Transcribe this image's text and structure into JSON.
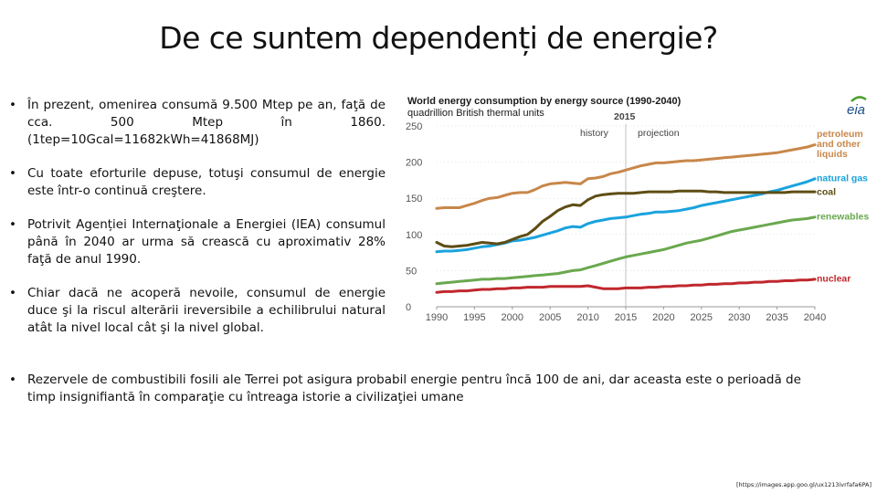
{
  "slide": {
    "title": "De ce suntem dependenți de energie?",
    "bullets": [
      "În prezent, omenirea consumă 9.500 Mtep pe an, faţă de cca. 500 Mtep în 1860. (1tep=10Gcal=11682kWh=41868MJ)",
      "Cu toate eforturile depuse, totuşi consumul de energie este într-o continuă creştere.",
      "Potrivit Agenției Internaţionale a Energiei (IEA) consumul până în 2040 ar urma să crească cu aproximativ 28% faţă de anul 1990.",
      "Chiar dacă ne acoperă nevoile, consumul de energie duce şi la riscul alterării ireversibile a echilibrului natural atât la nivel local cât şi la nivel global.",
      "Rezervele de combustibili fosili ale Terrei pot asigura probabil energie pentru încă 100 de ani, dar aceasta este o perioadă de timp insignifiantă în comparaţie cu întreaga istorie a civilizaţiei umane"
    ],
    "source": "[https://images.app.goo.gl/ux1213ivrfafa6PA]"
  },
  "chart_data": {
    "type": "line",
    "title": "World energy consumption by energy source (1990-2040)",
    "subtitle": "quadrillion British thermal units",
    "logo_text": "eia",
    "divider_year_label": "2015",
    "history_label": "history",
    "projection_label": "projection",
    "divider_year": 2015,
    "xlim": [
      1990,
      2040
    ],
    "ylim": [
      0,
      250
    ],
    "x_ticks": [
      1990,
      1995,
      2000,
      2005,
      2010,
      2015,
      2020,
      2025,
      2030,
      2035,
      2040
    ],
    "y_ticks": [
      0,
      50,
      100,
      150,
      200,
      250
    ],
    "x": [
      1990,
      1991,
      1992,
      1993,
      1994,
      1995,
      1996,
      1997,
      1998,
      1999,
      2000,
      2001,
      2002,
      2003,
      2004,
      2005,
      2006,
      2007,
      2008,
      2009,
      2010,
      2011,
      2012,
      2013,
      2014,
      2015,
      2016,
      2017,
      2018,
      2019,
      2020,
      2021,
      2022,
      2023,
      2024,
      2025,
      2026,
      2027,
      2028,
      2029,
      2030,
      2031,
      2032,
      2033,
      2034,
      2035,
      2036,
      2037,
      2038,
      2039,
      2040
    ],
    "series": [
      {
        "name": "petroleum and other liquids",
        "legend": [
          "petroleum",
          "and other",
          "liquids"
        ],
        "color": "#c8874a",
        "values": [
          136,
          137,
          137,
          137,
          140,
          143,
          147,
          150,
          151,
          154,
          157,
          158,
          158,
          162,
          167,
          170,
          171,
          172,
          171,
          170,
          177,
          178,
          180,
          184,
          186,
          189,
          192,
          195,
          197,
          199,
          199,
          200,
          201,
          202,
          202,
          203,
          204,
          205,
          206,
          207,
          208,
          209,
          210,
          211,
          212,
          213,
          215,
          217,
          219,
          221,
          224
        ]
      },
      {
        "name": "natural gas",
        "legend": [
          "natural gas"
        ],
        "color": "#1aa3dd",
        "values": [
          76,
          77,
          77,
          78,
          79,
          81,
          83,
          84,
          86,
          88,
          91,
          92,
          94,
          96,
          99,
          102,
          105,
          109,
          111,
          110,
          115,
          118,
          120,
          122,
          123,
          124,
          126,
          128,
          129,
          131,
          131,
          132,
          133,
          135,
          137,
          140,
          142,
          144,
          146,
          148,
          150,
          152,
          154,
          156,
          159,
          161,
          164,
          167,
          170,
          173,
          177
        ]
      },
      {
        "name": "coal",
        "legend": [
          "coal"
        ],
        "color": "#5e4d14",
        "values": [
          89,
          84,
          83,
          84,
          85,
          87,
          89,
          88,
          87,
          89,
          93,
          97,
          100,
          108,
          118,
          125,
          133,
          138,
          141,
          140,
          148,
          153,
          155,
          156,
          157,
          157,
          157,
          158,
          159,
          159,
          159,
          159,
          160,
          160,
          160,
          160,
          159,
          159,
          158,
          158,
          158,
          158,
          158,
          158,
          158,
          158,
          158,
          159,
          159,
          159,
          159
        ]
      },
      {
        "name": "renewables",
        "legend": [
          "renewables"
        ],
        "color": "#6aa84f",
        "values": [
          32,
          33,
          34,
          35,
          36,
          37,
          38,
          38,
          39,
          39,
          40,
          41,
          42,
          43,
          44,
          45,
          46,
          48,
          50,
          51,
          54,
          57,
          60,
          63,
          66,
          69,
          71,
          73,
          75,
          77,
          79,
          82,
          85,
          88,
          90,
          92,
          95,
          98,
          101,
          104,
          106,
          108,
          110,
          112,
          114,
          116,
          118,
          120,
          121,
          122,
          124
        ]
      },
      {
        "name": "nuclear",
        "legend": [
          "nuclear"
        ],
        "color": "#c0282d",
        "values": [
          20,
          21,
          21,
          22,
          22,
          23,
          24,
          24,
          25,
          25,
          26,
          26,
          27,
          27,
          27,
          28,
          28,
          28,
          28,
          28,
          29,
          27,
          25,
          25,
          25,
          26,
          26,
          26,
          27,
          27,
          28,
          28,
          29,
          29,
          30,
          30,
          31,
          31,
          32,
          32,
          33,
          33,
          34,
          34,
          35,
          35,
          36,
          36,
          37,
          37,
          38
        ]
      }
    ],
    "colors": {
      "axis": "#999999",
      "grid": "#cccccc",
      "divider": "#b0b0b0",
      "logo": "#1a4f8b",
      "logo_arc": "#4da02e"
    }
  }
}
